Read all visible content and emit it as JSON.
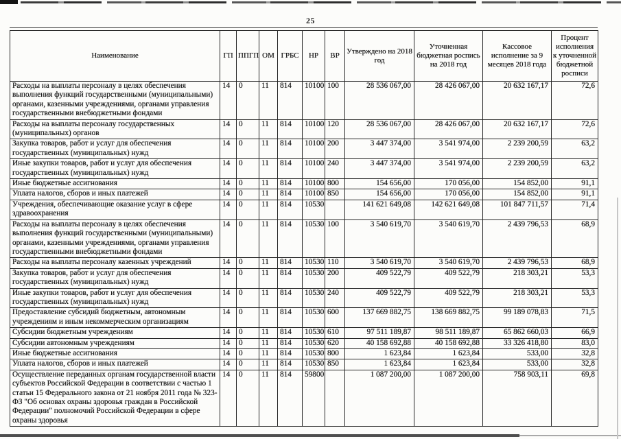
{
  "page": {
    "number": "25"
  },
  "table": {
    "columns": [
      "Наименование",
      "ГП",
      "ППГП",
      "ОМ",
      "ГРБС",
      "НР",
      "ВР",
      "Утверждено на 2018 год",
      "Уточненная бюджетная роспись на 2018 год",
      "Кассовое исполнение за 9 месяцев 2018 года",
      "Процент исполнения к уточненной бюджетной росписи"
    ],
    "rows": [
      {
        "name": "Расходы на выплаты персоналу в целях обеспечения выполнения функций государственными (муниципальными) органами, казенными учреждениями, органами управления государственными внебюджетными фондами",
        "gp": "14",
        "ppgp": "0",
        "om": "11",
        "grbs": "814",
        "nr": "10100",
        "vr": "100",
        "approved": "28 536 067,00",
        "updated": "28 426 067,00",
        "cash": "20 632 167,17",
        "percent": "72,6"
      },
      {
        "name": "Расходы на выплаты персоналу государственных (муниципальных) органов",
        "gp": "14",
        "ppgp": "0",
        "om": "11",
        "grbs": "814",
        "nr": "10100",
        "vr": "120",
        "approved": "28 536 067,00",
        "updated": "28 426 067,00",
        "cash": "20 632 167,17",
        "percent": "72,6"
      },
      {
        "name": "Закупка товаров, работ и услуг для обеспечения государственных (муниципальных) нужд",
        "gp": "14",
        "ppgp": "0",
        "om": "11",
        "grbs": "814",
        "nr": "10100",
        "vr": "200",
        "approved": "3 447 374,00",
        "updated": "3 541 974,00",
        "cash": "2 239 200,59",
        "percent": "63,2"
      },
      {
        "name": "Иные закупки товаров, работ и услуг для обеспечения государственных (муниципальных) нужд",
        "gp": "14",
        "ppgp": "0",
        "om": "11",
        "grbs": "814",
        "nr": "10100",
        "vr": "240",
        "approved": "3 447 374,00",
        "updated": "3 541 974,00",
        "cash": "2 239 200,59",
        "percent": "63,2"
      },
      {
        "name": "Иные бюджетные ассигнования",
        "gp": "14",
        "ppgp": "0",
        "om": "11",
        "grbs": "814",
        "nr": "10100",
        "vr": "800",
        "approved": "154 656,00",
        "updated": "170 056,00",
        "cash": "154 852,00",
        "percent": "91,1"
      },
      {
        "name": "Уплата налогов, сборов и иных платежей",
        "gp": "14",
        "ppgp": "0",
        "om": "11",
        "grbs": "814",
        "nr": "10100",
        "vr": "850",
        "approved": "154 656,00",
        "updated": "170 056,00",
        "cash": "154 852,00",
        "percent": "91,1"
      },
      {
        "name": "Учреждения, обеспечивающие оказание услуг в сфере здравоохранения",
        "gp": "14",
        "ppgp": "0",
        "om": "11",
        "grbs": "814",
        "nr": "10530",
        "vr": "",
        "approved": "141 621 649,08",
        "updated": "142 621 649,08",
        "cash": "101 847 711,57",
        "percent": "71,4"
      },
      {
        "name": "Расходы на выплаты персоналу в целях обеспечения выполнения функций государственными (муниципальными) органами, казенными учреждениями, органами управления государственными внебюджетными фондами",
        "gp": "14",
        "ppgp": "0",
        "om": "11",
        "grbs": "814",
        "nr": "10530",
        "vr": "100",
        "approved": "3 540 619,70",
        "updated": "3 540 619,70",
        "cash": "2 439 796,53",
        "percent": "68,9"
      },
      {
        "name": "Расходы на выплаты персоналу казенных учреждений",
        "gp": "14",
        "ppgp": "0",
        "om": "11",
        "grbs": "814",
        "nr": "10530",
        "vr": "110",
        "approved": "3 540 619,70",
        "updated": "3 540 619,70",
        "cash": "2 439 796,53",
        "percent": "68,9"
      },
      {
        "name": "Закупка товаров, работ и услуг для обеспечения государственных (муниципальных) нужд",
        "gp": "14",
        "ppgp": "0",
        "om": "11",
        "grbs": "814",
        "nr": "10530",
        "vr": "200",
        "approved": "409 522,79",
        "updated": "409 522,79",
        "cash": "218 303,21",
        "percent": "53,3"
      },
      {
        "name": "Иные закупки товаров, работ и услуг для обеспечения государственных (муниципальных) нужд",
        "gp": "14",
        "ppgp": "0",
        "om": "11",
        "grbs": "814",
        "nr": "10530",
        "vr": "240",
        "approved": "409 522,79",
        "updated": "409 522,79",
        "cash": "218 303,21",
        "percent": "53,3"
      },
      {
        "name": "Предоставление субсидий бюджетным, автономным учреждениям и иным некоммерческим организациям",
        "gp": "14",
        "ppgp": "0",
        "om": "11",
        "grbs": "814",
        "nr": "10530",
        "vr": "600",
        "approved": "137 669 882,75",
        "updated": "138 669 882,75",
        "cash": "99 189 078,83",
        "percent": "71,5"
      },
      {
        "name": "Субсидии бюджетным учреждениям",
        "gp": "14",
        "ppgp": "0",
        "om": "11",
        "grbs": "814",
        "nr": "10530",
        "vr": "610",
        "approved": "97 511 189,87",
        "updated": "98 511 189,87",
        "cash": "65 862 660,03",
        "percent": "66,9"
      },
      {
        "name": "Субсидии автономным учреждениям",
        "gp": "14",
        "ppgp": "0",
        "om": "11",
        "grbs": "814",
        "nr": "10530",
        "vr": "620",
        "approved": "40 158 692,88",
        "updated": "40 158 692,88",
        "cash": "33 326 418,80",
        "percent": "83,0"
      },
      {
        "name": "Иные бюджетные ассигнования",
        "gp": "14",
        "ppgp": "0",
        "om": "11",
        "grbs": "814",
        "nr": "10530",
        "vr": "800",
        "approved": "1 623,84",
        "updated": "1 623,84",
        "cash": "533,00",
        "percent": "32,8"
      },
      {
        "name": "Уплата налогов, сборов и иных платежей",
        "gp": "14",
        "ppgp": "0",
        "om": "11",
        "grbs": "814",
        "nr": "10530",
        "vr": "850",
        "approved": "1 623,84",
        "updated": "1 623,84",
        "cash": "533,00",
        "percent": "32,8"
      },
      {
        "name": "Осуществление переданных органам государственной власти субъектов Российской Федерации в соответствии с частью 1 статьи 15 Федерального закона от 21 ноября 2011 года № 323-ФЗ \"Об основах охраны здоровья граждан в Российской Федерации\" полномочий Российской Федерации в сфере охраны здоровья",
        "gp": "14",
        "ppgp": "0",
        "om": "11",
        "grbs": "814",
        "nr": "59800",
        "vr": "",
        "approved": "1 087 200,00",
        "updated": "1 087 200,00",
        "cash": "758 903,11",
        "percent": "69,8"
      }
    ]
  }
}
